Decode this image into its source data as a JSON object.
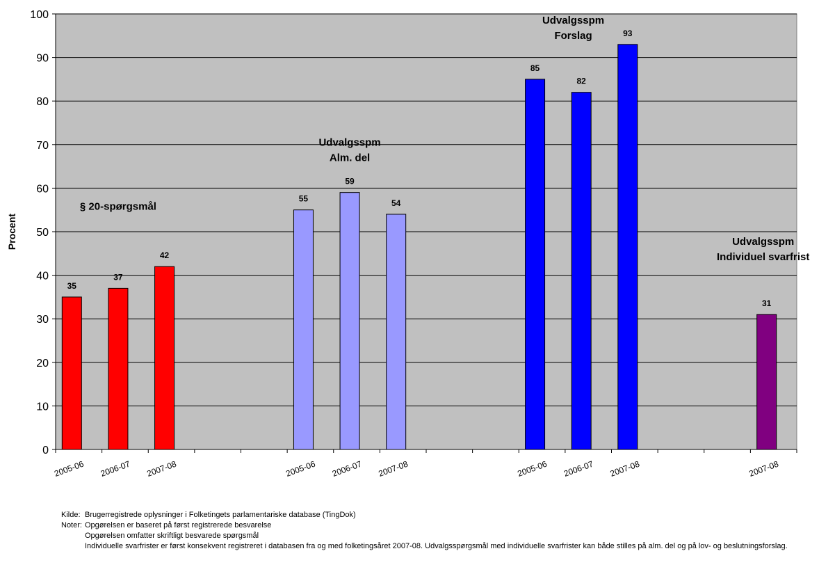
{
  "chart_data": {
    "type": "bar",
    "ylabel": "Procent",
    "ylim": [
      0,
      100
    ],
    "yticks": [
      0,
      10,
      20,
      30,
      40,
      50,
      60,
      70,
      80,
      90,
      100
    ],
    "grid": true,
    "plot_background": "#c0c0c0",
    "slots": 16,
    "groups": [
      {
        "label_lines": [
          "§ 20-spørgsmål"
        ],
        "color": "#ff0000",
        "bars": [
          {
            "x": "2005-06",
            "value": 35
          },
          {
            "x": "2006-07",
            "value": 37
          },
          {
            "x": "2007-08",
            "value": 42
          }
        ]
      },
      {
        "label_lines": [
          "Udvalgsspm",
          "Alm. del"
        ],
        "color": "#9999ff",
        "bars": [
          {
            "x": "2005-06",
            "value": 55
          },
          {
            "x": "2006-07",
            "value": 59
          },
          {
            "x": "2007-08",
            "value": 54
          }
        ]
      },
      {
        "label_lines": [
          "Udvalgsspm",
          "Forslag"
        ],
        "color": "#0000ff",
        "bars": [
          {
            "x": "2005-06",
            "value": 85
          },
          {
            "x": "2006-07",
            "value": 82
          },
          {
            "x": "2007-08",
            "value": 93
          }
        ]
      },
      {
        "label_lines": [
          "Udvalgsspm",
          "Individuel svarfrist"
        ],
        "color": "#800080",
        "bars": [
          {
            "x": "2007-08",
            "value": 31
          }
        ]
      }
    ]
  },
  "notes": {
    "source_key": "Kilde:",
    "source_text": "Brugerregistrede oplysninger i Folketingets parlamentariske database (TingDok)",
    "notes_key": "Noter:",
    "note_1": "Opgørelsen er baseret på først registrerede besvarelse",
    "note_2": "Opgørelsen omfatter skriftligt besvarede spørgsmål",
    "note_3": "Individuelle svarfrister er først konsekvent registreret i databasen fra og med folketingsåret 2007-08. Udvalgsspørgsmål med individuelle svarfrister kan både stilles på alm. del og på lov- og beslutningsforslag."
  }
}
